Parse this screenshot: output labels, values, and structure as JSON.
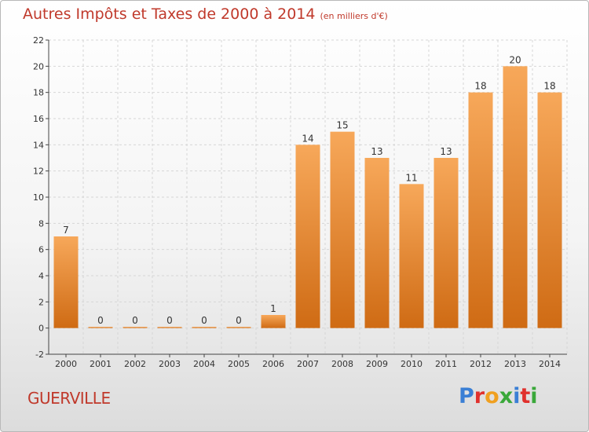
{
  "title": "Autres Impôts et Taxes de 2000 à 2014",
  "subtitle": "(en milliers d'€)",
  "commune": "GUERVILLE",
  "logo_letters": [
    {
      "ch": "P",
      "color": "#3a7fd5"
    },
    {
      "ch": "r",
      "color": "#e0312d"
    },
    {
      "ch": "o",
      "color": "#f0a020"
    },
    {
      "ch": "x",
      "color": "#3aa83a"
    },
    {
      "ch": "i",
      "color": "#3a7fd5"
    },
    {
      "ch": "t",
      "color": "#e0312d"
    },
    {
      "ch": "i",
      "color": "#3aa83a"
    }
  ],
  "colors": {
    "bar_top": "#f7a85a",
    "bar_bottom": "#cf6b14",
    "title": "#c0392b",
    "grid": "#d6d6d6"
  },
  "chart_data": {
    "type": "bar",
    "categories": [
      "2000",
      "2001",
      "2002",
      "2003",
      "2004",
      "2005",
      "2006",
      "2007",
      "2008",
      "2009",
      "2010",
      "2011",
      "2012",
      "2013",
      "2014"
    ],
    "values": [
      7,
      0,
      0,
      0,
      0,
      0,
      1,
      14,
      15,
      13,
      11,
      13,
      18,
      20,
      18
    ],
    "ylim": [
      -2,
      22
    ],
    "yticks": [
      -2,
      0,
      2,
      4,
      6,
      8,
      10,
      12,
      14,
      16,
      18,
      20,
      22
    ],
    "grid": true,
    "data_labels": true
  }
}
